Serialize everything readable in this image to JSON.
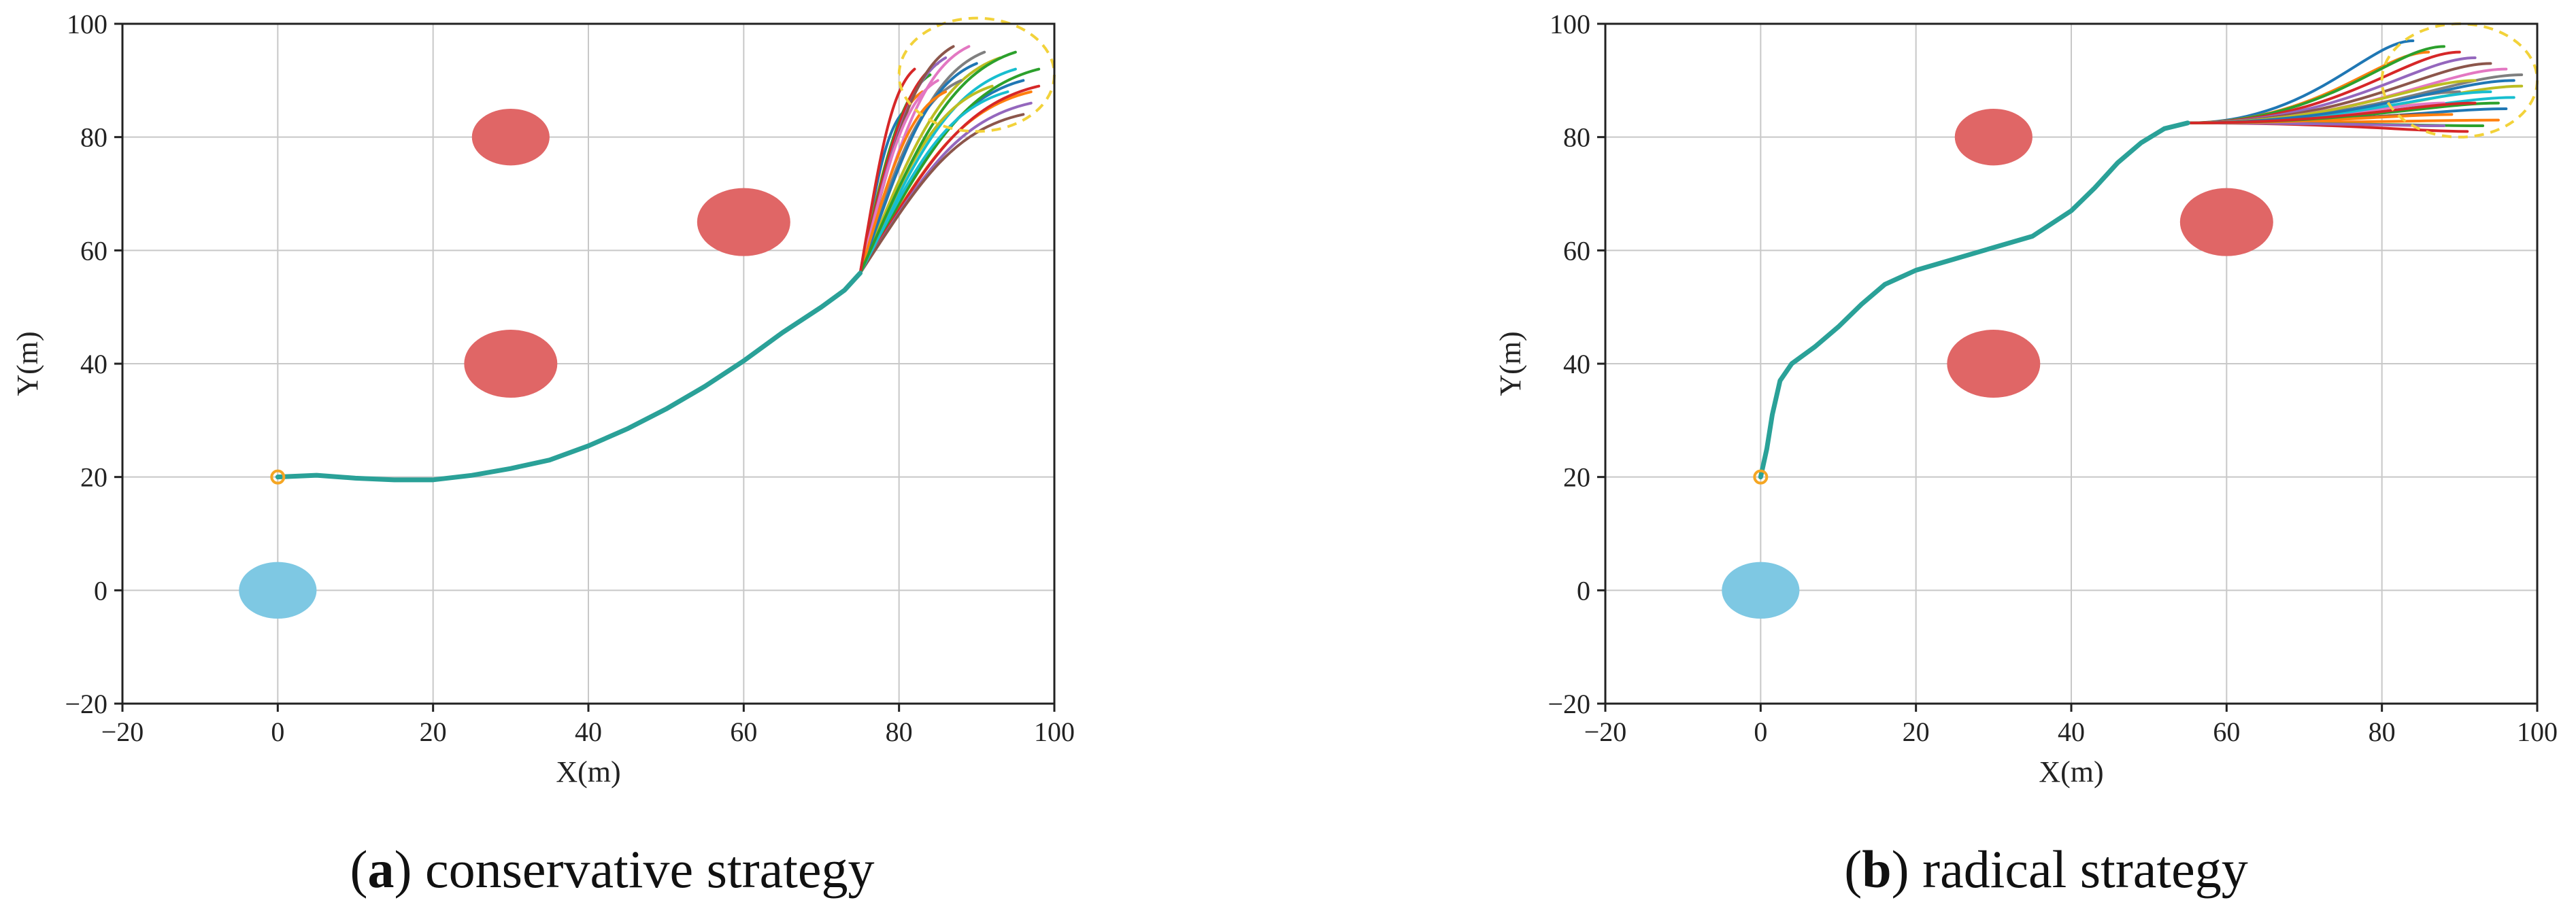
{
  "chart_data": [
    {
      "type": "line",
      "caption": {
        "open": "(",
        "letter": "a",
        "close": ")",
        "text": " conservative strategy"
      },
      "xlabel": "X(m)",
      "ylabel": "Y(m)",
      "xlim": [
        -20,
        100
      ],
      "ylim": [
        -20,
        100
      ],
      "xticks": [
        -20,
        0,
        20,
        40,
        60,
        80,
        100
      ],
      "yticks": [
        -20,
        0,
        20,
        40,
        60,
        80,
        100
      ],
      "grid": true,
      "start_marker": {
        "x": 0,
        "y": 20,
        "color": "#f5a623"
      },
      "home_zone": {
        "x": 0,
        "y": 0,
        "rx": 5,
        "ry": 5,
        "color": "#7ec8e3"
      },
      "obstacles": [
        {
          "x": 30,
          "y": 80,
          "rx": 5,
          "ry": 5,
          "color": "#e06666"
        },
        {
          "x": 60,
          "y": 65,
          "rx": 6,
          "ry": 6,
          "color": "#e06666"
        },
        {
          "x": 30,
          "y": 40,
          "rx": 6,
          "ry": 6,
          "color": "#e06666"
        }
      ],
      "target_zone": {
        "x": 90,
        "y": 91,
        "rx": 10,
        "ry": 10,
        "color": "#f2d23a"
      },
      "shared_path": [
        [
          0,
          20
        ],
        [
          5,
          20.3
        ],
        [
          10,
          19.8
        ],
        [
          15,
          19.5
        ],
        [
          20,
          19.5
        ],
        [
          25,
          20.3
        ],
        [
          30,
          21.5
        ],
        [
          35,
          23
        ],
        [
          40,
          25.5
        ],
        [
          45,
          28.5
        ],
        [
          50,
          32
        ],
        [
          55,
          36
        ],
        [
          60,
          40.5
        ],
        [
          65,
          45.5
        ],
        [
          70,
          50
        ],
        [
          73,
          53
        ],
        [
          75,
          56
        ]
      ],
      "branch_from": [
        75,
        56
      ],
      "branch_ends": [
        [
          81,
          85
        ],
        [
          83,
          88
        ],
        [
          84,
          91
        ],
        [
          85,
          93
        ],
        [
          86,
          94
        ],
        [
          87,
          96
        ],
        [
          89,
          96
        ],
        [
          91,
          95
        ],
        [
          93,
          94
        ],
        [
          95,
          92
        ],
        [
          96,
          90
        ],
        [
          97,
          88
        ],
        [
          98,
          92
        ],
        [
          98,
          89
        ],
        [
          97,
          86
        ],
        [
          96,
          84
        ],
        [
          85,
          90
        ],
        [
          88,
          90
        ],
        [
          92,
          89
        ],
        [
          94,
          88
        ],
        [
          90,
          93
        ],
        [
          86,
          88
        ],
        [
          95,
          95
        ],
        [
          82,
          92
        ]
      ],
      "series_colors": [
        "#1f77b4",
        "#ff7f0e",
        "#2ca02c",
        "#d62728",
        "#9467bd",
        "#8c564b",
        "#e377c2",
        "#7f7f7f",
        "#bcbd22",
        "#17becf"
      ],
      "path_color": "#2aa198"
    },
    {
      "type": "line",
      "caption": {
        "open": "(",
        "letter": "b",
        "close": ")",
        "text": " radical strategy"
      },
      "xlabel": "X(m)",
      "ylabel": "Y(m)",
      "xlim": [
        -20,
        100
      ],
      "ylim": [
        -20,
        100
      ],
      "xticks": [
        -20,
        0,
        20,
        40,
        60,
        80,
        100
      ],
      "yticks": [
        -20,
        0,
        20,
        40,
        60,
        80,
        100
      ],
      "grid": true,
      "start_marker": {
        "x": 0,
        "y": 20,
        "color": "#f5a623"
      },
      "home_zone": {
        "x": 0,
        "y": 0,
        "rx": 5,
        "ry": 5,
        "color": "#7ec8e3"
      },
      "obstacles": [
        {
          "x": 30,
          "y": 80,
          "rx": 5,
          "ry": 5,
          "color": "#e06666"
        },
        {
          "x": 60,
          "y": 65,
          "rx": 6,
          "ry": 6,
          "color": "#e06666"
        },
        {
          "x": 30,
          "y": 40,
          "rx": 6,
          "ry": 6,
          "color": "#e06666"
        }
      ],
      "target_zone": {
        "x": 90,
        "y": 90,
        "rx": 10,
        "ry": 10,
        "color": "#f2d23a"
      },
      "shared_path": [
        [
          0,
          20
        ],
        [
          0.8,
          25
        ],
        [
          1.5,
          31
        ],
        [
          2.5,
          37
        ],
        [
          4,
          40
        ],
        [
          7,
          43
        ],
        [
          10,
          46.5
        ],
        [
          13,
          50.5
        ],
        [
          16,
          54
        ],
        [
          20,
          56.5
        ],
        [
          25,
          58.5
        ],
        [
          30,
          60.5
        ],
        [
          35,
          62.5
        ],
        [
          40,
          67
        ],
        [
          43,
          71
        ],
        [
          46,
          75.5
        ],
        [
          49,
          79
        ],
        [
          52,
          81.5
        ],
        [
          55,
          82.5
        ]
      ],
      "branch_from": [
        55,
        82.5
      ],
      "branch_ends": [
        [
          84,
          97
        ],
        [
          86,
          95
        ],
        [
          88,
          96
        ],
        [
          90,
          95
        ],
        [
          92,
          94
        ],
        [
          94,
          93
        ],
        [
          96,
          92
        ],
        [
          98,
          91
        ],
        [
          98,
          89
        ],
        [
          97,
          87
        ],
        [
          96,
          85
        ],
        [
          95,
          83
        ],
        [
          93,
          82
        ],
        [
          91,
          81
        ],
        [
          88,
          82
        ],
        [
          86,
          84
        ],
        [
          88,
          86
        ],
        [
          90,
          88
        ],
        [
          92,
          90
        ],
        [
          94,
          88
        ],
        [
          97,
          90
        ],
        [
          89,
          84
        ],
        [
          95,
          86
        ],
        [
          92,
          86
        ]
      ],
      "series_colors": [
        "#1f77b4",
        "#ff7f0e",
        "#2ca02c",
        "#d62728",
        "#9467bd",
        "#8c564b",
        "#e377c2",
        "#7f7f7f",
        "#bcbd22",
        "#17becf"
      ],
      "path_color": "#2aa198"
    }
  ]
}
